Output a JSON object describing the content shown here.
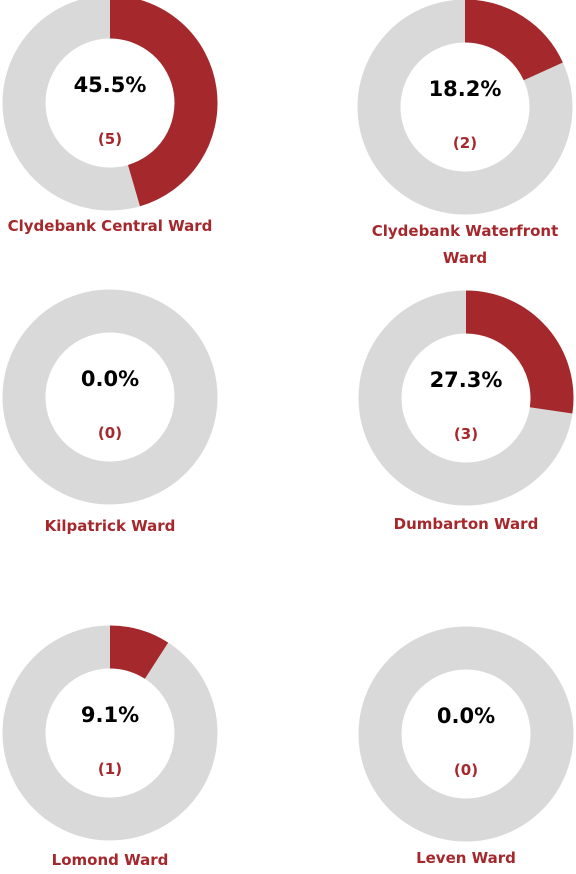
{
  "chart_data": [
    {
      "type": "donut",
      "title": "Clydebank Central Ward",
      "values": [
        45.5
      ],
      "value_labels": [
        "45.5%"
      ],
      "counts": [
        5
      ],
      "count_labels": [
        "(5)"
      ],
      "color": "#a5282c",
      "track_color": "#d9d9d9"
    },
    {
      "type": "donut",
      "title": "Clydebank Waterfront Ward",
      "values": [
        18.2
      ],
      "value_labels": [
        "18.2%"
      ],
      "counts": [
        2
      ],
      "count_labels": [
        "(2)"
      ],
      "color": "#a5282c",
      "track_color": "#d9d9d9"
    },
    {
      "type": "donut",
      "title": "Kilpatrick Ward",
      "values": [
        0.0
      ],
      "value_labels": [
        "0.0%"
      ],
      "counts": [
        0
      ],
      "count_labels": [
        "(0)"
      ],
      "color": "#a5282c",
      "track_color": "#d9d9d9"
    },
    {
      "type": "donut",
      "title": "Dumbarton Ward",
      "values": [
        27.3
      ],
      "value_labels": [
        "27.3%"
      ],
      "counts": [
        3
      ],
      "count_labels": [
        "(3)"
      ],
      "color": "#a5282c",
      "track_color": "#d9d9d9"
    },
    {
      "type": "donut",
      "title": "Lomond Ward",
      "values": [
        9.1
      ],
      "value_labels": [
        "9.1%"
      ],
      "counts": [
        1
      ],
      "count_labels": [
        "(1)"
      ],
      "color": "#a5282c",
      "track_color": "#d9d9d9"
    },
    {
      "type": "donut",
      "title": "Leven Ward",
      "values": [
        0.0
      ],
      "value_labels": [
        "0.0%"
      ],
      "counts": [
        0
      ],
      "count_labels": [
        "(0)"
      ],
      "color": "#a5282c",
      "track_color": "#d9d9d9"
    }
  ]
}
